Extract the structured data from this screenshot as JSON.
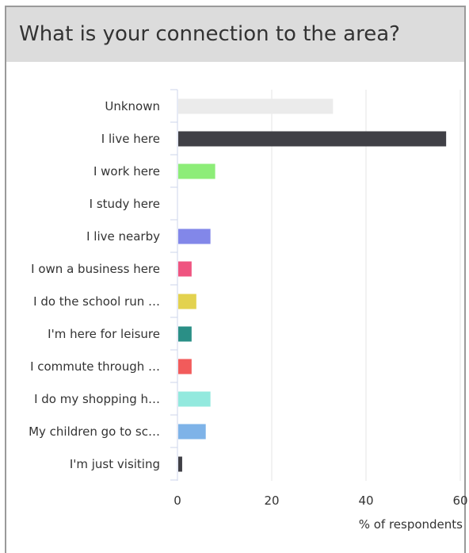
{
  "header": {
    "title": "What is your connection to the area?"
  },
  "chart_data": {
    "type": "bar",
    "orientation": "horizontal",
    "categories": [
      "Unknown",
      "I live here",
      "I work here",
      "I study here",
      "I live nearby",
      "I own a business here",
      "I do the school run …",
      "I'm here for leisure",
      "I commute through …",
      "I do my shopping h…",
      "My children go to sc…",
      "I'm just visiting"
    ],
    "values": [
      33,
      57,
      8,
      0,
      7,
      3,
      4,
      3,
      3,
      7,
      6,
      1
    ],
    "colors": [
      "#ebebeb",
      "#404046",
      "#8ded78",
      "#ebebeb",
      "#8287e9",
      "#ef5480",
      "#e3d24f",
      "#2a8f86",
      "#f25b5b",
      "#93e9de",
      "#7eb3e8",
      "#404046"
    ],
    "xlim": [
      0,
      60
    ],
    "xticks": [
      0,
      20,
      40,
      60
    ],
    "xlabel": "% of respondents",
    "grid": true
  }
}
